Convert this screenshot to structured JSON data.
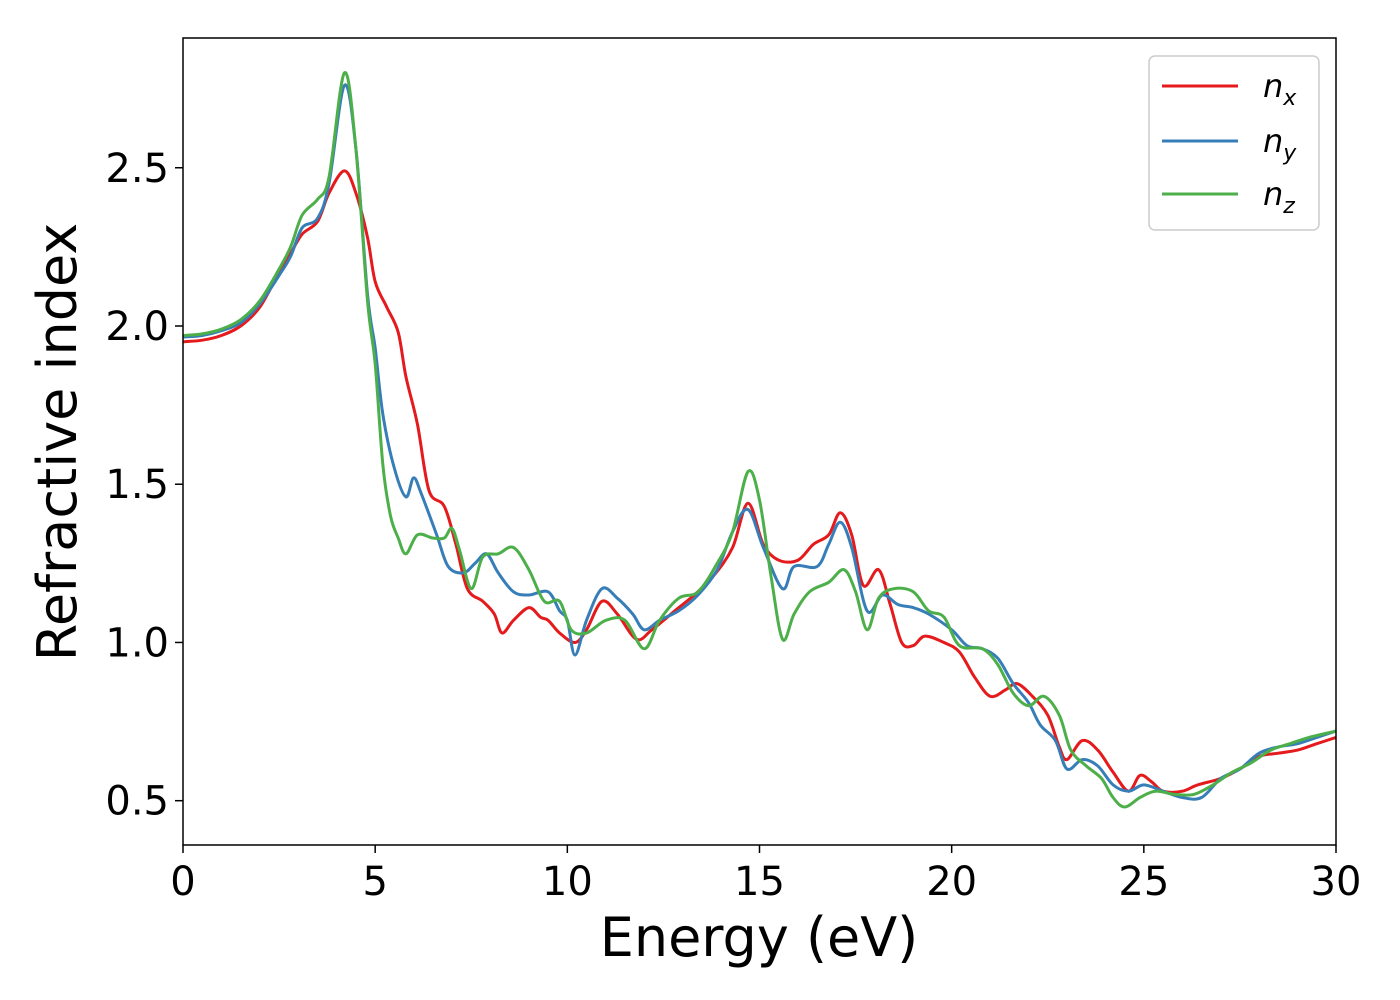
{
  "chart_data": {
    "type": "line",
    "title": "",
    "xlabel": "Energy (eV)",
    "ylabel": "Refractive index",
    "xlim": [
      0,
      30
    ],
    "ylim": [
      0.36,
      2.91
    ],
    "xticks": [
      0,
      5,
      10,
      15,
      20,
      25,
      30
    ],
    "xtick_labels": [
      "0",
      "5",
      "10",
      "15",
      "20",
      "25",
      "30"
    ],
    "yticks": [
      0.5,
      1.0,
      1.5,
      2.0,
      2.5
    ],
    "ytick_labels": [
      "0.5",
      "1.0",
      "1.5",
      "2.0",
      "2.5"
    ],
    "grid": false,
    "legend_position": "top-right",
    "series": [
      {
        "name": "n",
        "subscript": "x",
        "color": "#e41a1c",
        "points": [
          [
            0,
            1.95
          ],
          [
            0.5,
            1.955
          ],
          [
            1,
            1.97
          ],
          [
            1.5,
            2.0
          ],
          [
            2,
            2.06
          ],
          [
            2.5,
            2.17
          ],
          [
            2.8,
            2.23
          ],
          [
            3.1,
            2.29
          ],
          [
            3.5,
            2.33
          ],
          [
            3.8,
            2.42
          ],
          [
            4.2,
            2.49
          ],
          [
            4.5,
            2.42
          ],
          [
            4.8,
            2.28
          ],
          [
            5.0,
            2.14
          ],
          [
            5.3,
            2.06
          ],
          [
            5.6,
            1.98
          ],
          [
            5.8,
            1.84
          ],
          [
            6.1,
            1.69
          ],
          [
            6.4,
            1.48
          ],
          [
            6.8,
            1.43
          ],
          [
            7.1,
            1.31
          ],
          [
            7.4,
            1.17
          ],
          [
            7.8,
            1.13
          ],
          [
            8.1,
            1.09
          ],
          [
            8.3,
            1.03
          ],
          [
            8.6,
            1.07
          ],
          [
            9.0,
            1.11
          ],
          [
            9.3,
            1.08
          ],
          [
            9.5,
            1.07
          ],
          [
            9.8,
            1.03
          ],
          [
            10.2,
            1.0
          ],
          [
            10.5,
            1.04
          ],
          [
            10.9,
            1.13
          ],
          [
            11.3,
            1.09
          ],
          [
            11.8,
            1.01
          ],
          [
            12.2,
            1.04
          ],
          [
            12.8,
            1.1
          ],
          [
            13.3,
            1.15
          ],
          [
            13.8,
            1.21
          ],
          [
            14.3,
            1.3
          ],
          [
            14.7,
            1.44
          ],
          [
            15.1,
            1.31
          ],
          [
            15.5,
            1.26
          ],
          [
            16.0,
            1.26
          ],
          [
            16.4,
            1.31
          ],
          [
            16.8,
            1.34
          ],
          [
            17.1,
            1.41
          ],
          [
            17.4,
            1.34
          ],
          [
            17.7,
            1.18
          ],
          [
            18.1,
            1.23
          ],
          [
            18.4,
            1.12
          ],
          [
            18.7,
            1.0
          ],
          [
            19.0,
            0.99
          ],
          [
            19.3,
            1.02
          ],
          [
            19.8,
            1.0
          ],
          [
            20.2,
            0.97
          ],
          [
            20.6,
            0.89
          ],
          [
            21.0,
            0.83
          ],
          [
            21.4,
            0.85
          ],
          [
            21.7,
            0.87
          ],
          [
            22.1,
            0.83
          ],
          [
            22.5,
            0.77
          ],
          [
            22.8,
            0.67
          ],
          [
            23.0,
            0.63
          ],
          [
            23.4,
            0.69
          ],
          [
            23.8,
            0.66
          ],
          [
            24.2,
            0.59
          ],
          [
            24.6,
            0.53
          ],
          [
            24.9,
            0.58
          ],
          [
            25.2,
            0.56
          ],
          [
            25.5,
            0.53
          ],
          [
            26.0,
            0.53
          ],
          [
            26.4,
            0.55
          ],
          [
            27.0,
            0.57
          ],
          [
            27.5,
            0.6
          ],
          [
            28.0,
            0.64
          ],
          [
            28.5,
            0.65
          ],
          [
            29.0,
            0.66
          ],
          [
            29.5,
            0.68
          ],
          [
            30,
            0.7
          ]
        ]
      },
      {
        "name": "n",
        "subscript": "y",
        "color": "#377eb8",
        "points": [
          [
            0,
            1.965
          ],
          [
            0.5,
            1.97
          ],
          [
            1,
            1.985
          ],
          [
            1.5,
            2.01
          ],
          [
            2,
            2.07
          ],
          [
            2.5,
            2.16
          ],
          [
            2.8,
            2.22
          ],
          [
            3.1,
            2.31
          ],
          [
            3.5,
            2.34
          ],
          [
            3.8,
            2.45
          ],
          [
            4.2,
            2.76
          ],
          [
            4.5,
            2.56
          ],
          [
            4.8,
            2.1
          ],
          [
            5.0,
            1.93
          ],
          [
            5.2,
            1.72
          ],
          [
            5.5,
            1.55
          ],
          [
            5.8,
            1.46
          ],
          [
            6.0,
            1.52
          ],
          [
            6.2,
            1.47
          ],
          [
            6.6,
            1.34
          ],
          [
            6.9,
            1.24
          ],
          [
            7.3,
            1.22
          ],
          [
            7.6,
            1.25
          ],
          [
            7.9,
            1.28
          ],
          [
            8.2,
            1.22
          ],
          [
            8.6,
            1.16
          ],
          [
            9.0,
            1.15
          ],
          [
            9.5,
            1.16
          ],
          [
            9.8,
            1.1
          ],
          [
            10.0,
            1.07
          ],
          [
            10.2,
            0.96
          ],
          [
            10.5,
            1.07
          ],
          [
            10.9,
            1.17
          ],
          [
            11.3,
            1.14
          ],
          [
            11.7,
            1.09
          ],
          [
            12.0,
            1.04
          ],
          [
            12.4,
            1.07
          ],
          [
            12.9,
            1.1
          ],
          [
            13.4,
            1.15
          ],
          [
            13.9,
            1.23
          ],
          [
            14.3,
            1.35
          ],
          [
            14.7,
            1.42
          ],
          [
            15.1,
            1.3
          ],
          [
            15.6,
            1.17
          ],
          [
            15.9,
            1.24
          ],
          [
            16.5,
            1.24
          ],
          [
            16.8,
            1.31
          ],
          [
            17.1,
            1.38
          ],
          [
            17.4,
            1.3
          ],
          [
            17.8,
            1.1
          ],
          [
            18.2,
            1.15
          ],
          [
            18.6,
            1.12
          ],
          [
            19.0,
            1.11
          ],
          [
            19.4,
            1.09
          ],
          [
            20.0,
            1.04
          ],
          [
            20.4,
            0.99
          ],
          [
            20.8,
            0.98
          ],
          [
            21.2,
            0.95
          ],
          [
            21.6,
            0.87
          ],
          [
            22.0,
            0.81
          ],
          [
            22.3,
            0.74
          ],
          [
            22.7,
            0.69
          ],
          [
            23.0,
            0.6
          ],
          [
            23.4,
            0.63
          ],
          [
            23.8,
            0.61
          ],
          [
            24.2,
            0.55
          ],
          [
            24.6,
            0.53
          ],
          [
            25.0,
            0.55
          ],
          [
            25.5,
            0.53
          ],
          [
            26.0,
            0.51
          ],
          [
            26.5,
            0.51
          ],
          [
            27.0,
            0.57
          ],
          [
            27.5,
            0.6
          ],
          [
            28.0,
            0.65
          ],
          [
            28.5,
            0.67
          ],
          [
            29.0,
            0.68
          ],
          [
            29.5,
            0.7
          ],
          [
            30,
            0.72
          ]
        ]
      },
      {
        "name": "n",
        "subscript": "z",
        "color": "#4daf4a",
        "points": [
          [
            0,
            1.97
          ],
          [
            0.5,
            1.975
          ],
          [
            1,
            1.99
          ],
          [
            1.5,
            2.02
          ],
          [
            2,
            2.08
          ],
          [
            2.5,
            2.18
          ],
          [
            2.8,
            2.25
          ],
          [
            3.1,
            2.35
          ],
          [
            3.5,
            2.4
          ],
          [
            3.8,
            2.47
          ],
          [
            4.2,
            2.8
          ],
          [
            4.5,
            2.56
          ],
          [
            4.8,
            2.08
          ],
          [
            5.0,
            1.88
          ],
          [
            5.2,
            1.56
          ],
          [
            5.4,
            1.4
          ],
          [
            5.6,
            1.33
          ],
          [
            5.8,
            1.28
          ],
          [
            6.1,
            1.34
          ],
          [
            6.5,
            1.33
          ],
          [
            6.8,
            1.33
          ],
          [
            7.0,
            1.36
          ],
          [
            7.2,
            1.29
          ],
          [
            7.5,
            1.17
          ],
          [
            7.8,
            1.27
          ],
          [
            8.2,
            1.28
          ],
          [
            8.6,
            1.3
          ],
          [
            9.0,
            1.23
          ],
          [
            9.4,
            1.13
          ],
          [
            9.8,
            1.13
          ],
          [
            10.1,
            1.04
          ],
          [
            10.5,
            1.03
          ],
          [
            11.0,
            1.07
          ],
          [
            11.5,
            1.07
          ],
          [
            12.0,
            0.98
          ],
          [
            12.4,
            1.07
          ],
          [
            12.9,
            1.14
          ],
          [
            13.4,
            1.16
          ],
          [
            13.9,
            1.25
          ],
          [
            14.3,
            1.35
          ],
          [
            14.7,
            1.54
          ],
          [
            15.0,
            1.45
          ],
          [
            15.3,
            1.21
          ],
          [
            15.6,
            1.01
          ],
          [
            15.9,
            1.09
          ],
          [
            16.3,
            1.16
          ],
          [
            16.8,
            1.19
          ],
          [
            17.2,
            1.23
          ],
          [
            17.5,
            1.16
          ],
          [
            17.8,
            1.04
          ],
          [
            18.1,
            1.14
          ],
          [
            18.5,
            1.17
          ],
          [
            19.0,
            1.16
          ],
          [
            19.4,
            1.1
          ],
          [
            19.8,
            1.08
          ],
          [
            20.2,
            0.99
          ],
          [
            20.8,
            0.98
          ],
          [
            21.2,
            0.93
          ],
          [
            21.6,
            0.84
          ],
          [
            22.0,
            0.8
          ],
          [
            22.4,
            0.83
          ],
          [
            22.8,
            0.77
          ],
          [
            23.1,
            0.66
          ],
          [
            23.5,
            0.61
          ],
          [
            23.9,
            0.57
          ],
          [
            24.2,
            0.51
          ],
          [
            24.5,
            0.48
          ],
          [
            24.9,
            0.51
          ],
          [
            25.3,
            0.53
          ],
          [
            25.8,
            0.52
          ],
          [
            26.3,
            0.52
          ],
          [
            26.8,
            0.55
          ],
          [
            27.3,
            0.59
          ],
          [
            27.8,
            0.62
          ],
          [
            28.3,
            0.66
          ],
          [
            28.8,
            0.68
          ],
          [
            29.3,
            0.7
          ],
          [
            30,
            0.72
          ]
        ]
      }
    ]
  }
}
